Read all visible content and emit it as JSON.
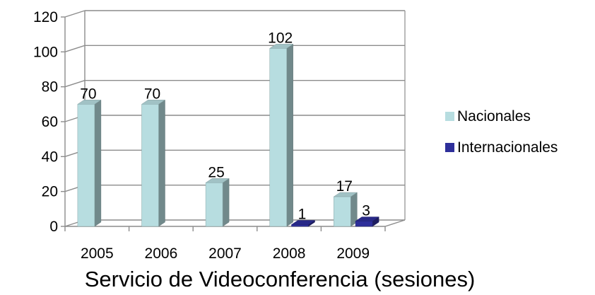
{
  "chart_data": {
    "type": "bar",
    "title": "Servicio de Videoconferencia (sesiones)",
    "categories": [
      "2005",
      "2006",
      "2007",
      "2008",
      "2009"
    ],
    "series": [
      {
        "name": "Nacionales",
        "values": [
          70,
          70,
          25,
          102,
          17
        ],
        "labels": [
          "70",
          "70",
          "25",
          "102",
          "17"
        ],
        "color": "#b7dde0"
      },
      {
        "name": "Internacionales",
        "values": [
          0,
          0,
          0,
          1,
          3
        ],
        "labels": [
          "",
          "",
          "",
          "1",
          "3"
        ],
        "color": "#2e2f9a"
      }
    ],
    "yticks": [
      "0",
      "20",
      "40",
      "60",
      "80",
      "100",
      "120"
    ],
    "ylim": [
      0,
      120
    ],
    "grid": true,
    "legend_position": "right"
  }
}
